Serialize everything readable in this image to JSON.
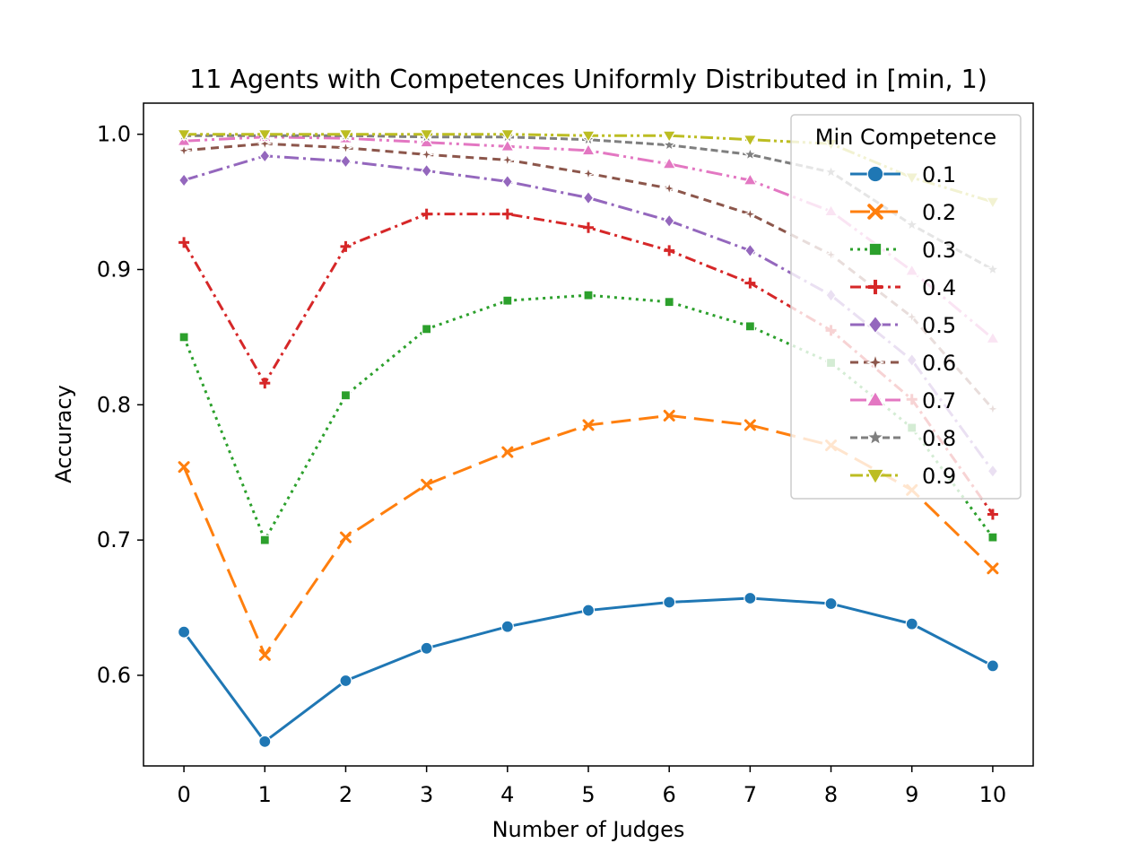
{
  "chart_data": {
    "type": "line",
    "title": "11 Agents with Competences Uniformly Distributed in [min, 1)",
    "xlabel": "Number of Judges",
    "ylabel": "Accuracy",
    "x": [
      0,
      1,
      2,
      3,
      4,
      5,
      6,
      7,
      8,
      9,
      10
    ],
    "xlim": [
      -0.5,
      10.5
    ],
    "ylim": [
      0.533,
      1.023
    ],
    "xticks": [
      "0",
      "1",
      "2",
      "3",
      "4",
      "5",
      "6",
      "7",
      "8",
      "9",
      "10"
    ],
    "yticks": [
      "0.6",
      "0.7",
      "0.8",
      "0.9",
      "1.0"
    ],
    "grid": false,
    "legend": {
      "title": "Min Competence",
      "placement": "top-right"
    },
    "series": [
      {
        "name": "0.1",
        "color": "#1f77b4",
        "dash": "solid",
        "marker": "circle",
        "values": [
          0.632,
          0.551,
          0.596,
          0.62,
          0.636,
          0.648,
          0.654,
          0.657,
          0.653,
          0.638,
          0.607
        ]
      },
      {
        "name": "0.2",
        "color": "#ff7f0e",
        "dash": "dashed",
        "marker": "x",
        "values": [
          0.754,
          0.615,
          0.702,
          0.741,
          0.765,
          0.785,
          0.792,
          0.785,
          0.77,
          0.737,
          0.679
        ]
      },
      {
        "name": "0.3",
        "color": "#2ca02c",
        "dash": "dotted",
        "marker": "square",
        "values": [
          0.85,
          0.7,
          0.807,
          0.856,
          0.877,
          0.881,
          0.876,
          0.858,
          0.831,
          0.783,
          0.702
        ]
      },
      {
        "name": "0.4",
        "color": "#d62728",
        "dash": "dashdot",
        "marker": "plus",
        "values": [
          0.92,
          0.816,
          0.917,
          0.941,
          0.941,
          0.931,
          0.914,
          0.89,
          0.855,
          0.804,
          0.719
        ]
      },
      {
        "name": "0.5",
        "color": "#9467bd",
        "dash": "dashdot2",
        "marker": "diamond",
        "values": [
          0.966,
          0.984,
          0.98,
          0.973,
          0.965,
          0.953,
          0.936,
          0.914,
          0.881,
          0.833,
          0.751
        ]
      },
      {
        "name": "0.6",
        "color": "#8c564b",
        "dash": "dashed2",
        "marker": "star4",
        "values": [
          0.988,
          0.993,
          0.99,
          0.985,
          0.981,
          0.971,
          0.96,
          0.941,
          0.911,
          0.865,
          0.797
        ]
      },
      {
        "name": "0.7",
        "color": "#e377c2",
        "dash": "dashdot3",
        "marker": "triangle",
        "values": [
          0.995,
          0.998,
          0.997,
          0.994,
          0.991,
          0.988,
          0.978,
          0.966,
          0.943,
          0.899,
          0.849
        ]
      },
      {
        "name": "0.8",
        "color": "#7f7f7f",
        "dash": "dashed3",
        "marker": "star",
        "values": [
          0.999,
          0.999,
          0.999,
          0.998,
          0.998,
          0.996,
          0.992,
          0.985,
          0.972,
          0.933,
          0.9
        ]
      },
      {
        "name": "0.9",
        "color": "#bcbd22",
        "dash": "dashdot4",
        "marker": "tridown",
        "values": [
          1.0,
          1.0,
          1.0,
          1.0,
          1.0,
          0.999,
          0.999,
          0.996,
          0.993,
          0.968,
          0.95
        ]
      }
    ]
  }
}
